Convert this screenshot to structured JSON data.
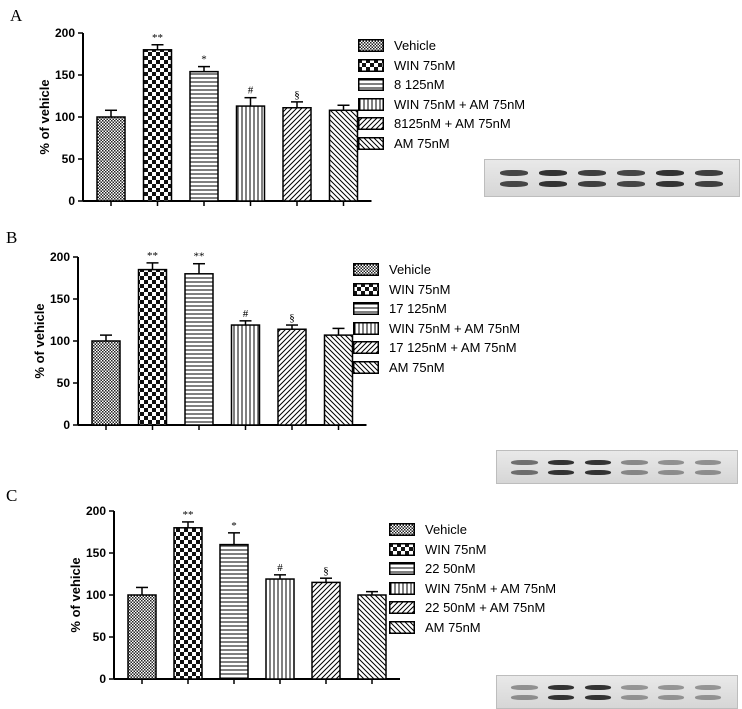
{
  "panels": [
    {
      "label": "A",
      "legend": [
        "Vehicle",
        "WIN 75nM",
        "8 125nM",
        "WIN 75nM + AM 75nM",
        "8125nM + AM 75nM",
        "AM 75nM"
      ]
    },
    {
      "label": "B",
      "legend": [
        "Vehicle",
        "WIN 75nM",
        "17 125nM",
        "WIN 75nM + AM 75nM",
        "17 125nM + AM 75nM",
        "AM 75nM"
      ]
    },
    {
      "label": "C",
      "legend": [
        "Vehicle",
        "WIN 75nM",
        "22 50nM",
        "WIN 75nM + AM 75nM",
        "22 50nM + AM 75nM",
        "AM 75nM"
      ]
    }
  ],
  "chart_data": [
    {
      "type": "bar",
      "panel": "A",
      "ylabel": "% of vehicle",
      "ylim": [
        0,
        200
      ],
      "yticks": [
        "0",
        "50",
        "100",
        "150",
        "200"
      ],
      "patterns": [
        "crosshatch",
        "checker",
        "horizontal",
        "vertical",
        "diag-right",
        "diag-left"
      ],
      "values": [
        100,
        180,
        154,
        113,
        111,
        108
      ],
      "errors": [
        8,
        6,
        6,
        10,
        7,
        6
      ],
      "annotations": [
        "",
        "**",
        "*",
        "#",
        "§",
        ""
      ]
    },
    {
      "type": "bar",
      "panel": "B",
      "ylabel": "% of vehicle",
      "ylim": [
        0,
        200
      ],
      "yticks": [
        "0",
        "50",
        "100",
        "150",
        "200"
      ],
      "patterns": [
        "crosshatch",
        "checker",
        "horizontal",
        "vertical",
        "diag-right",
        "diag-left"
      ],
      "values": [
        100,
        185,
        180,
        119,
        114,
        107
      ],
      "errors": [
        7,
        8,
        12,
        5,
        5,
        8
      ],
      "annotations": [
        "",
        "**",
        "**",
        "#",
        "§",
        ""
      ]
    },
    {
      "type": "bar",
      "panel": "C",
      "ylabel": "% of vehicle",
      "ylim": [
        0,
        200
      ],
      "yticks": [
        "0",
        "50",
        "100",
        "150",
        "200"
      ],
      "patterns": [
        "crosshatch",
        "checker",
        "horizontal",
        "vertical",
        "diag-right",
        "diag-left"
      ],
      "values": [
        100,
        180,
        160,
        119,
        115,
        100
      ],
      "errors": [
        9,
        7,
        14,
        5,
        5,
        4
      ],
      "annotations": [
        "",
        "**",
        "*",
        "#",
        "§",
        ""
      ]
    }
  ]
}
